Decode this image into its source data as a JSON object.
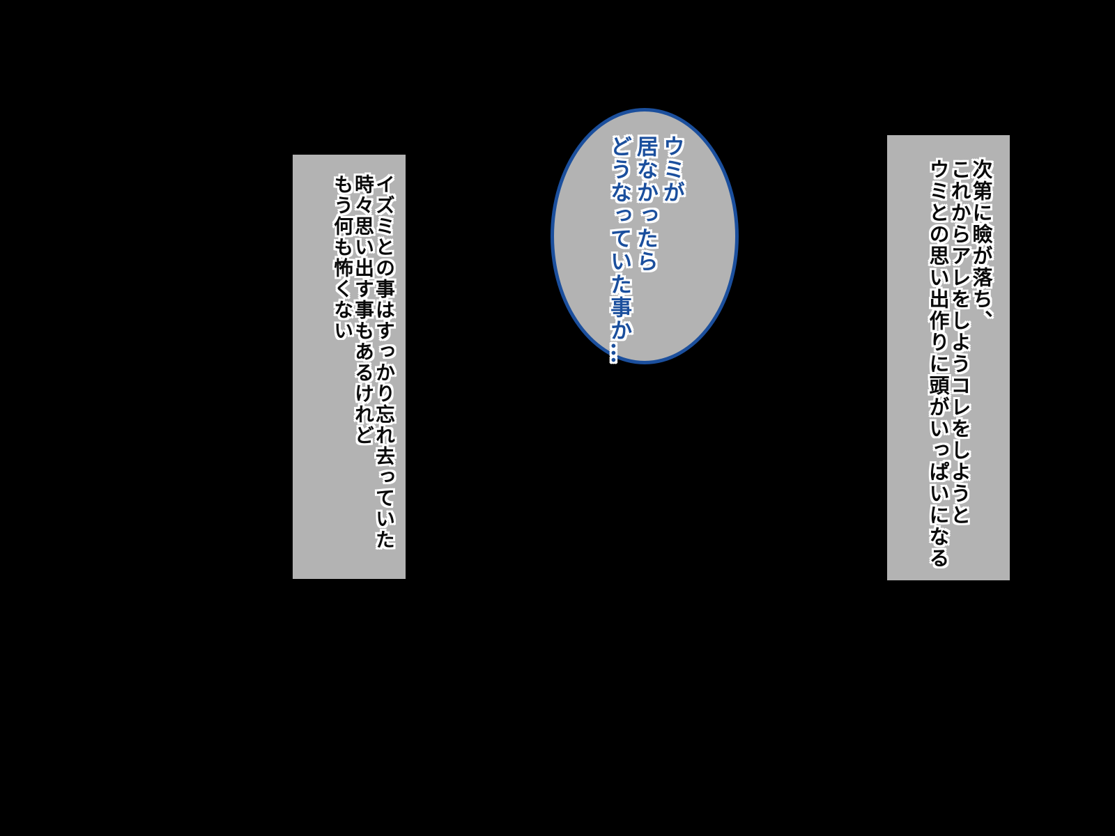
{
  "colors": {
    "background": "#000000",
    "panel_fill": "#b3b3b3",
    "bubble_fill": "#b3b3b3",
    "bubble_border": "#1b4f9d",
    "bubble_text": "#1b4f9d",
    "caption_text": "#0a0a0a",
    "text_outline": "#ffffff"
  },
  "left_caption": {
    "lines": [
      "イズミとの事はすっかり忘れ去っていた",
      "時々思い出す事もあるけれど",
      "もう何も怖くない"
    ]
  },
  "speech_bubble": {
    "lines": [
      "ウミが",
      "居なかったら",
      "どうなっていた事か…"
    ]
  },
  "right_caption": {
    "lines": [
      "次第に瞼が落ち、",
      "これからアレをしようコレをしようと",
      "ウミとの思い出作りに頭がいっぱいになる"
    ]
  }
}
